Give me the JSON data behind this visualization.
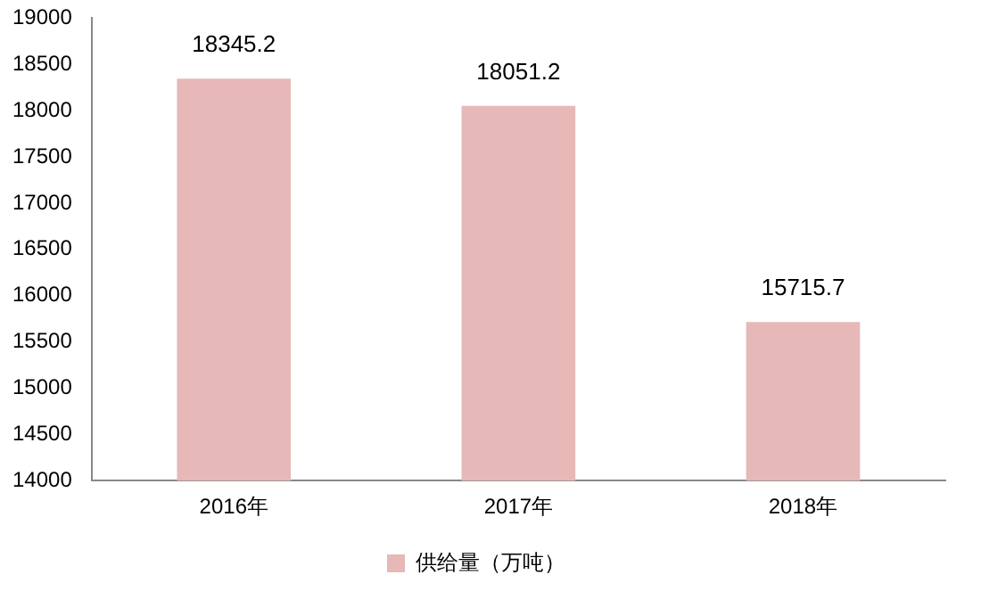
{
  "chart_data": {
    "type": "bar",
    "categories": [
      "2016年",
      "2017年",
      "2018年"
    ],
    "series": [
      {
        "name": "供给量（万吨）",
        "color": "#e6b8b7",
        "values": [
          18345.2,
          18051.2,
          15715.7
        ]
      }
    ],
    "ylim": [
      14000,
      19000
    ],
    "yticks": [
      14000,
      14500,
      15000,
      15500,
      16000,
      16500,
      17000,
      17500,
      18000,
      18500,
      19000
    ],
    "data_labels": true,
    "legend": "bottom",
    "grid": false
  }
}
